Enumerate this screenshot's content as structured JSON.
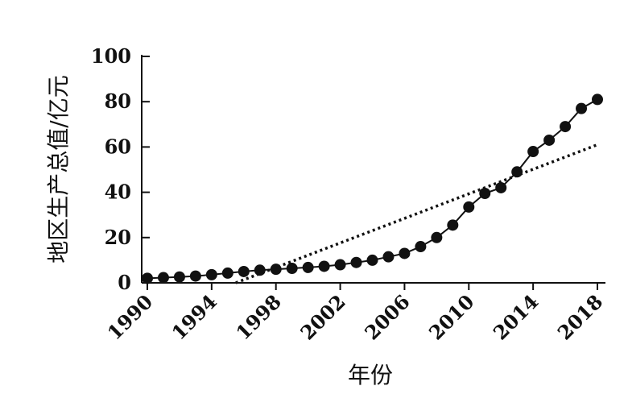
{
  "chart_data": {
    "type": "line",
    "title": "",
    "xlabel": "年份",
    "ylabel": "地区生产总值/亿元",
    "xlim": [
      1990,
      2018.5
    ],
    "ylim": [
      0,
      100
    ],
    "x_ticks": [
      "1990",
      "1994",
      "1998",
      "2002",
      "2006",
      "2010",
      "2014",
      "2018"
    ],
    "y_ticks": [
      "0",
      "20",
      "40",
      "60",
      "80",
      "100"
    ],
    "grid": false,
    "legend": "none",
    "series": [
      {
        "style": "solid line with filled circle markers",
        "color": "#111111",
        "x": [
          1990,
          1991,
          1992,
          1993,
          1994,
          1995,
          1996,
          1997,
          1998,
          1999,
          2000,
          2001,
          2002,
          2003,
          2004,
          2005,
          2006,
          2007,
          2008,
          2009,
          2010,
          2011,
          2012,
          2013,
          2014,
          2015,
          2016,
          2017,
          2018
        ],
        "values": [
          2.0,
          2.3,
          2.6,
          3.0,
          3.6,
          4.3,
          5.0,
          5.6,
          6.0,
          6.4,
          6.8,
          7.3,
          8.0,
          9.0,
          10.0,
          11.5,
          13.0,
          16.0,
          20.0,
          25.5,
          33.5,
          39.5,
          42.0,
          49.0,
          58.0,
          63.0,
          69.0,
          77.0,
          81.0
        ]
      },
      {
        "style": "dotted trend line",
        "color": "#111111",
        "x": [
          1995.5,
          2018
        ],
        "values": [
          0,
          61
        ]
      }
    ]
  }
}
